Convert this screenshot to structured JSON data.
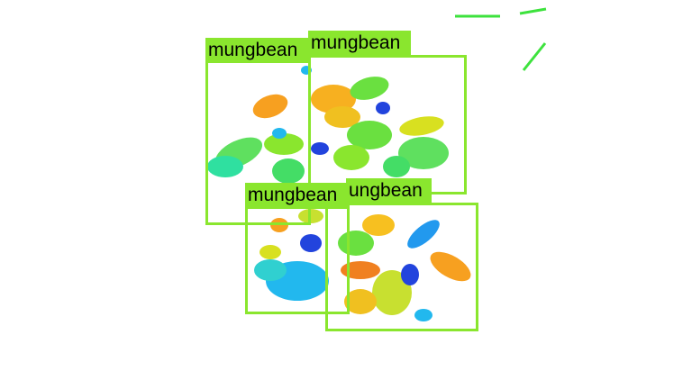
{
  "image": {
    "background": "#ffffff",
    "box_color": "#8ae62e",
    "label_text_color": "#000000"
  },
  "detections": [
    {
      "label": "mungbean"
    },
    {
      "label": "mungbean"
    },
    {
      "label": "mungbean"
    },
    {
      "label": "ungbean"
    }
  ]
}
